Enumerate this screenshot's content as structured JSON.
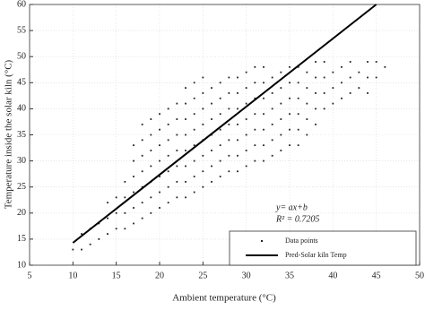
{
  "chart_data": {
    "type": "scatter",
    "x_label": "Ambient temperature (°C)",
    "y_label": "Temperature inside the solar kiln (°C)",
    "annotations": [
      "y= ax+b",
      "R² = 0.7205"
    ],
    "xlim": [
      5,
      50
    ],
    "xticks": [
      5,
      10,
      15,
      20,
      25,
      30,
      35,
      40,
      45,
      50
    ],
    "ylim": [
      10,
      60
    ],
    "yticks": [
      10,
      15,
      20,
      25,
      30,
      35,
      40,
      45,
      50,
      55,
      60
    ],
    "grid": true,
    "legend": "lower right",
    "series": [
      {
        "name": "Data points",
        "color": "#222222",
        "kind": "scatter",
        "x": [
          10,
          11,
          11,
          12,
          12,
          13,
          13,
          14,
          14,
          14,
          15,
          15,
          15,
          16,
          16,
          16,
          16,
          17,
          17,
          17,
          17,
          17,
          17,
          18,
          18,
          18,
          18,
          18,
          18,
          18,
          19,
          19,
          19,
          19,
          19,
          19,
          19,
          20,
          20,
          20,
          20,
          20,
          20,
          20,
          21,
          21,
          21,
          21,
          21,
          21,
          21,
          22,
          22,
          22,
          22,
          22,
          22,
          22,
          23,
          23,
          23,
          23,
          23,
          23,
          23,
          23,
          24,
          24,
          24,
          24,
          24,
          24,
          24,
          24,
          25,
          25,
          25,
          25,
          25,
          25,
          25,
          25,
          26,
          26,
          26,
          26,
          26,
          26,
          26,
          27,
          27,
          27,
          27,
          27,
          27,
          27,
          28,
          28,
          28,
          28,
          28,
          28,
          28,
          29,
          29,
          29,
          29,
          29,
          29,
          29,
          30,
          30,
          30,
          30,
          30,
          30,
          30,
          31,
          31,
          31,
          31,
          31,
          31,
          31,
          32,
          32,
          32,
          32,
          32,
          32,
          32,
          33,
          33,
          33,
          33,
          33,
          33,
          34,
          34,
          34,
          34,
          34,
          34,
          35,
          35,
          35,
          35,
          35,
          35,
          36,
          36,
          36,
          36,
          36,
          36,
          37,
          37,
          37,
          37,
          37,
          38,
          38,
          38,
          38,
          38,
          39,
          39,
          39,
          39,
          40,
          40,
          40,
          41,
          41,
          41,
          42,
          42,
          42,
          43,
          43,
          44,
          44,
          44,
          45,
          45,
          46
        ],
        "y": [
          13,
          13,
          16,
          14,
          17,
          15,
          18,
          16,
          19,
          22,
          17,
          20,
          23,
          17,
          20,
          23,
          26,
          18,
          21,
          24,
          27,
          30,
          33,
          19,
          22,
          25,
          28,
          31,
          34,
          37,
          20,
          23,
          26,
          29,
          32,
          35,
          38,
          21,
          24,
          27,
          30,
          33,
          36,
          39,
          22,
          25,
          28,
          31,
          34,
          37,
          40,
          23,
          26,
          29,
          32,
          35,
          38,
          41,
          23,
          26,
          29,
          32,
          35,
          38,
          41,
          44,
          24,
          27,
          30,
          33,
          36,
          39,
          42,
          45,
          25,
          28,
          31,
          34,
          37,
          40,
          43,
          46,
          26,
          29,
          32,
          35,
          38,
          41,
          44,
          27,
          30,
          33,
          36,
          39,
          42,
          45,
          28,
          31,
          34,
          37,
          40,
          43,
          46,
          28,
          31,
          34,
          37,
          40,
          43,
          46,
          29,
          32,
          35,
          38,
          41,
          44,
          47,
          30,
          33,
          36,
          39,
          42,
          45,
          48,
          30,
          33,
          36,
          39,
          42,
          45,
          48,
          31,
          34,
          37,
          40,
          43,
          46,
          32,
          35,
          38,
          41,
          44,
          47,
          33,
          36,
          39,
          42,
          45,
          48,
          33,
          36,
          39,
          42,
          45,
          48,
          35,
          38,
          41,
          44,
          47,
          37,
          40,
          43,
          46,
          49,
          40,
          43,
          46,
          49,
          41,
          44,
          47,
          42,
          45,
          48,
          43,
          46,
          49,
          44,
          47,
          43,
          46,
          49,
          46,
          49,
          48
        ]
      },
      {
        "name": "Pred-Solar kiln Temp",
        "color": "#000000",
        "kind": "line",
        "x": [
          10,
          45
        ],
        "y": [
          14.3,
          60
        ]
      }
    ]
  }
}
